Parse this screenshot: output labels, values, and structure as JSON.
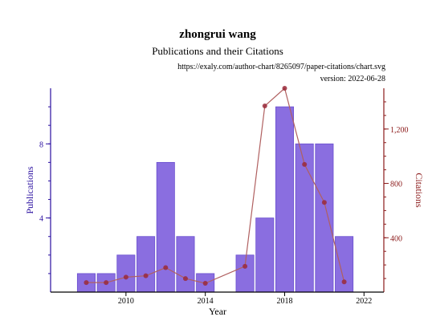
{
  "header": {
    "title": "zhongrui wang",
    "subtitle": "Publications and their Citations",
    "url": "https://exaly.com/author-chart/8265097/paper-citations/chart.svg",
    "version": "version: 2022-06-28"
  },
  "colors": {
    "bar_fill": "#8a6ee0",
    "bar_stroke": "#6a4fcf",
    "left_axis": "#2a0fa0",
    "line": "#b06060",
    "point": "#9a2a3a",
    "right_axis": "#8b1a1a"
  },
  "chart_data": {
    "type": "bar",
    "title": "Publications and their Citations",
    "xlabel": "Year",
    "ylabel": "Publications",
    "y2label": "Citations",
    "x_ticks": [
      "2010",
      "2014",
      "2018",
      "2022"
    ],
    "xlim": [
      2006.2,
      2023
    ],
    "ylim": [
      0,
      11
    ],
    "y_ticks": [
      "4",
      "8"
    ],
    "y2lim": [
      0,
      1500
    ],
    "y2_ticks": [
      "400",
      "800",
      "1,200"
    ],
    "grid": false,
    "series": [
      {
        "name": "Publications",
        "type": "bar",
        "axis": "left",
        "x": [
          2008,
          2009,
          2010,
          2011,
          2012,
          2013,
          2014,
          2016,
          2017,
          2018,
          2019,
          2020,
          2021
        ],
        "values": [
          1,
          1,
          2,
          3,
          7,
          3,
          1,
          2,
          4,
          10,
          8,
          8,
          3
        ]
      },
      {
        "name": "Citations",
        "type": "line",
        "axis": "right",
        "x": [
          2008,
          2009,
          2010,
          2011,
          2012,
          2013,
          2014,
          2016,
          2017,
          2018,
          2019,
          2020,
          2021
        ],
        "values": [
          70,
          70,
          110,
          120,
          180,
          100,
          65,
          190,
          1370,
          1500,
          940,
          660,
          75
        ]
      }
    ]
  }
}
